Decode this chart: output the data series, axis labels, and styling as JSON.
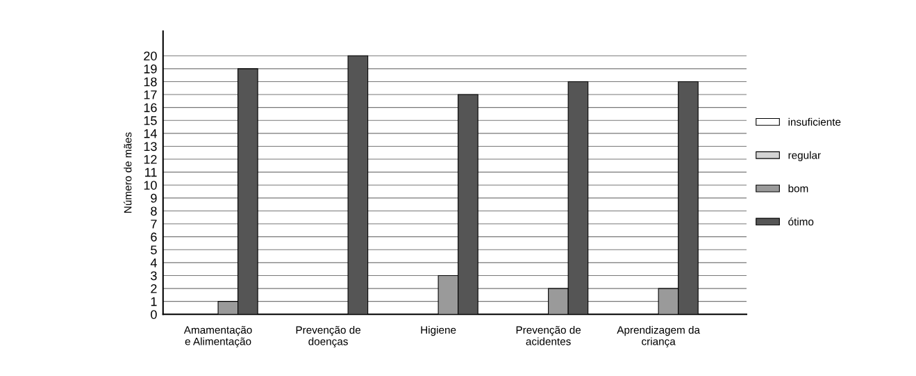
{
  "chart_data": {
    "type": "bar",
    "ylabel": "Número de mães",
    "categories": [
      "Amamentação\ne Alimentação",
      "Prevenção de\ndoenças",
      "Higiene",
      "Prevenção de\nacidentes",
      "Aprendizagem da\ncriança"
    ],
    "series": [
      {
        "name": "insuficiente",
        "color": "#ffffff",
        "values": [
          0,
          0,
          0,
          0,
          0
        ]
      },
      {
        "name": "regular",
        "color": "#d4d4d4",
        "values": [
          0,
          0,
          0,
          0,
          0
        ]
      },
      {
        "name": "bom",
        "color": "#9a9a9a",
        "values": [
          1,
          0,
          3,
          2,
          2
        ]
      },
      {
        "name": "ótimo",
        "color": "#555555",
        "values": [
          19,
          20,
          17,
          18,
          18
        ]
      }
    ],
    "ylim": [
      0,
      21.9
    ],
    "yticks": [
      0,
      1,
      2,
      3,
      4,
      5,
      6,
      7,
      8,
      9,
      10,
      11,
      12,
      13,
      14,
      15,
      16,
      17,
      18,
      19,
      20
    ],
    "grid": "y",
    "legend": "right"
  }
}
